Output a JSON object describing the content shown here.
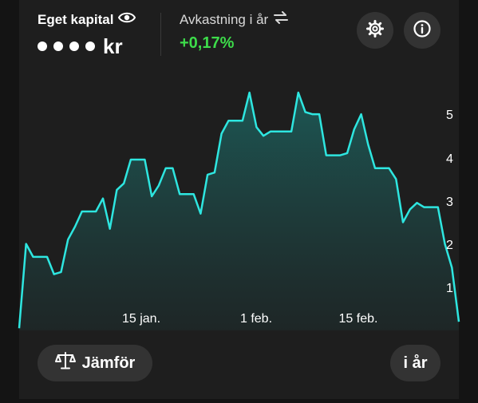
{
  "header": {
    "equity_label": "Eget kapital",
    "equity_currency": "kr",
    "return_label": "Avkastning i år",
    "return_value": "+0,17%"
  },
  "icons": {
    "visibility": "eye-icon",
    "swap": "swap-arrows-icon",
    "settings": "gear-icon",
    "info": "info-icon",
    "compare": "scale-icon"
  },
  "colors": {
    "line": "#2ee6e0",
    "positive": "#3ddc4a",
    "background": "#1e1e1e"
  },
  "footer": {
    "compare_label": "Jämför",
    "period_label": "i år"
  },
  "chart_data": {
    "type": "area",
    "x_tick_labels": [
      "15 jan.",
      "1 feb.",
      "15 feb."
    ],
    "y_tick_labels": [
      "1",
      "2",
      "3",
      "4",
      "5"
    ],
    "ylim": [
      0,
      5.5
    ],
    "grid": false,
    "values": [
      0.05,
      2.0,
      1.7,
      1.7,
      1.7,
      1.3,
      1.35,
      2.1,
      2.4,
      2.75,
      2.75,
      2.75,
      3.05,
      2.35,
      3.25,
      3.4,
      3.95,
      3.95,
      3.95,
      3.1,
      3.35,
      3.75,
      3.75,
      3.15,
      3.15,
      3.15,
      2.7,
      3.6,
      3.65,
      4.55,
      4.85,
      4.85,
      4.85,
      5.5,
      4.7,
      4.5,
      4.6,
      4.6,
      4.6,
      4.6,
      5.5,
      5.05,
      5.0,
      5.0,
      4.05,
      4.05,
      4.05,
      4.1,
      4.65,
      5.0,
      4.3,
      3.75,
      3.75,
      3.75,
      3.5,
      2.5,
      2.8,
      2.95,
      2.85,
      2.85,
      2.85,
      2.0,
      1.45,
      0.2
    ]
  }
}
